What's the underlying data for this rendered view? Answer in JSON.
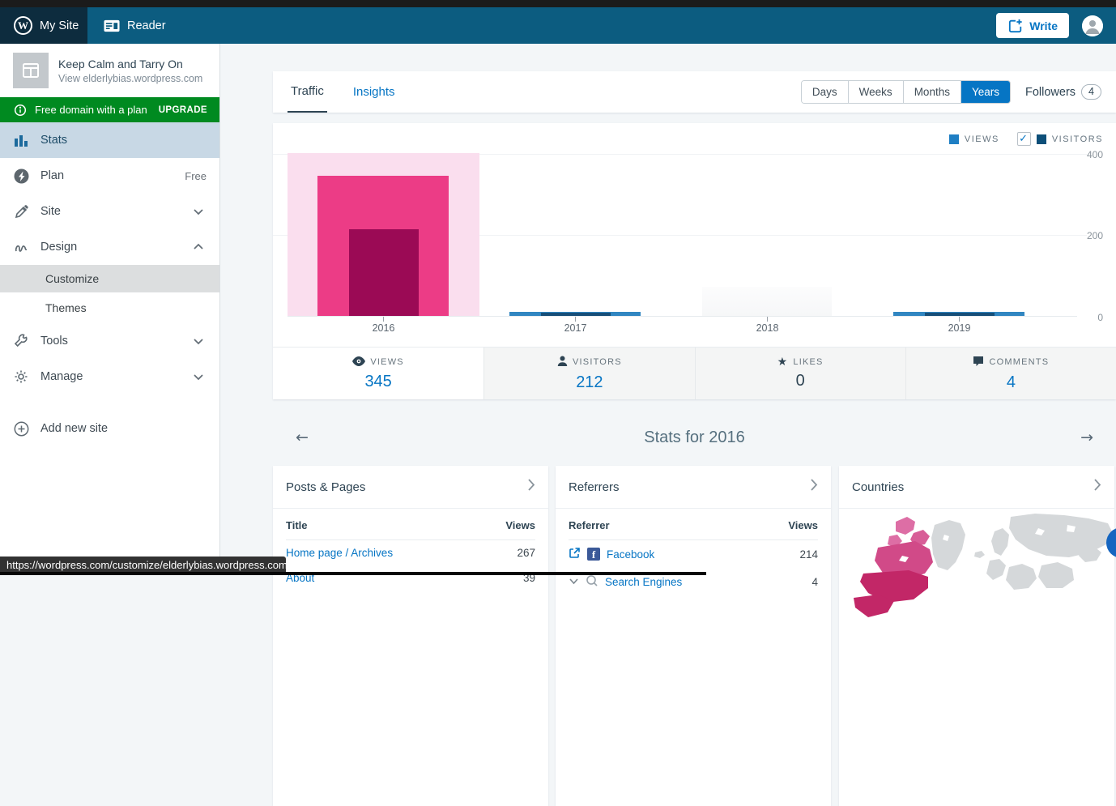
{
  "masthead": {
    "my_site": "My Site",
    "reader": "Reader",
    "write": "Write"
  },
  "sidebar": {
    "site_title": "Keep Calm and Tarry On",
    "site_url": "View elderlybias.wordpress.com",
    "banner": {
      "text": "Free domain with a plan",
      "action": "UPGRADE"
    },
    "items": [
      {
        "label": "Stats",
        "active": true
      },
      {
        "label": "Plan",
        "badge": "Free"
      },
      {
        "label": "Site",
        "chevron": "down"
      },
      {
        "label": "Design",
        "chevron": "up"
      },
      {
        "label": "Customize",
        "sub": true,
        "active": true
      },
      {
        "label": "Themes",
        "sub": true
      },
      {
        "label": "Tools",
        "chevron": "down"
      },
      {
        "label": "Manage",
        "chevron": "down"
      }
    ],
    "add_new_site": "Add new site"
  },
  "statsnav": {
    "tabs": [
      {
        "label": "Traffic",
        "active": true
      },
      {
        "label": "Insights"
      }
    ],
    "periods": [
      "Days",
      "Weeks",
      "Months",
      "Years"
    ],
    "active_period": "Years",
    "followers_label": "Followers",
    "followers_count": "4"
  },
  "chart_data": {
    "type": "bar",
    "categories": [
      "2016",
      "2017",
      "2018",
      "2019"
    ],
    "series": [
      {
        "name": "Views",
        "values": [
          345,
          10,
          0,
          10
        ]
      },
      {
        "name": "Visitors",
        "values": [
          212,
          8,
          0,
          8
        ]
      }
    ],
    "selected_category": "2016",
    "ylim": [
      0,
      400
    ],
    "yticks": [
      400,
      200,
      0
    ],
    "ytick_labels": [
      "400",
      "200",
      "0"
    ],
    "legend": [
      "VIEWS",
      "VISITORS"
    ],
    "legend_position": "top-right",
    "note": "2017 and 2019 values estimated from very small bars; 2016 is the selected (pink) year; 2018 shows only a faint placeholder bar."
  },
  "summary": {
    "items": [
      {
        "label": "VIEWS",
        "value": "345",
        "selected": true
      },
      {
        "label": "VISITORS",
        "value": "212"
      },
      {
        "label": "LIKES",
        "value": "0",
        "muted": true
      },
      {
        "label": "COMMENTS",
        "value": "4"
      }
    ]
  },
  "period_nav": {
    "title": "Stats for 2016"
  },
  "modules": {
    "posts": {
      "title": "Posts & Pages",
      "col_left": "Title",
      "col_right": "Views",
      "rows": [
        {
          "title": "Home page / Archives",
          "views": "267"
        },
        {
          "title": "About",
          "views": "39"
        }
      ]
    },
    "referrers": {
      "title": "Referrers",
      "col_left": "Referrer",
      "col_right": "Views",
      "rows": [
        {
          "title": "Facebook",
          "views": "214",
          "icon": "facebook"
        },
        {
          "title": "Search Engines",
          "views": "4",
          "icon": "search-engines"
        }
      ]
    },
    "countries": {
      "title": "Countries"
    }
  },
  "statusbar": {
    "url": "https://wordpress.com/customize/elderlybias.wordpress.com"
  },
  "colors": {
    "accent_blue": "#0675c4",
    "masthead": "#0c5c80",
    "masthead_selected": "#0d2c3e",
    "banner_green": "#008a20",
    "views_bar": "#3186c1",
    "visitors_bar": "#174e78",
    "views_bar_selected": "#ec3c86",
    "visitors_bar_selected": "#9b0a55",
    "selected_column_highlight": "#fadeee",
    "placeholder_bar": "#f6f7f8"
  }
}
